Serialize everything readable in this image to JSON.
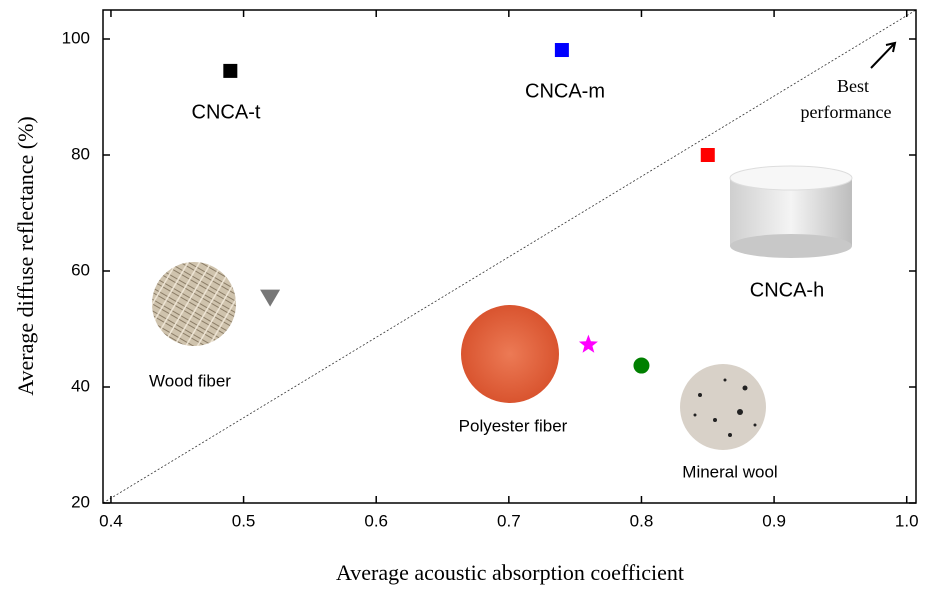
{
  "chart_data": {
    "type": "scatter",
    "x_label": "Average acoustic absorption coefficient",
    "y_label": "Average diffuse reflectance (%)",
    "xlim": [
      0.394,
      1.007
    ],
    "ylim": [
      20,
      105
    ],
    "xticks": [
      0.4,
      0.5,
      0.6,
      0.7,
      0.8,
      0.9,
      {
        "value": 1,
        "label": "1.0"
      }
    ],
    "yticks": [
      20,
      40,
      60,
      80,
      100
    ],
    "annotation": [
      "Best",
      "performance"
    ],
    "series": [
      {
        "name": "CNCA-t",
        "color": "#000000",
        "marker": "square",
        "x": [
          0.49
        ],
        "values": [
          94.5
        ]
      },
      {
        "name": "CNCA-m",
        "color": "#0000ff",
        "marker": "square",
        "x": [
          0.74
        ],
        "values": [
          98.1
        ]
      },
      {
        "name": "CNCA-h",
        "color": "#ff0000",
        "marker": "square",
        "x": [
          0.85
        ],
        "values": [
          80
        ]
      },
      {
        "name": "Wood fiber",
        "color": "#777777",
        "marker": "triangle-down",
        "x": [
          0.52
        ],
        "values": [
          55.4
        ]
      },
      {
        "name": "Polyester fiber",
        "color": "#ff00ff",
        "marker": "star",
        "x": [
          0.76
        ],
        "values": [
          47.3
        ]
      },
      {
        "name": "Mineral wool",
        "color": "#008000",
        "marker": "circle",
        "x": [
          0.8
        ],
        "values": [
          43.7
        ]
      }
    ]
  }
}
